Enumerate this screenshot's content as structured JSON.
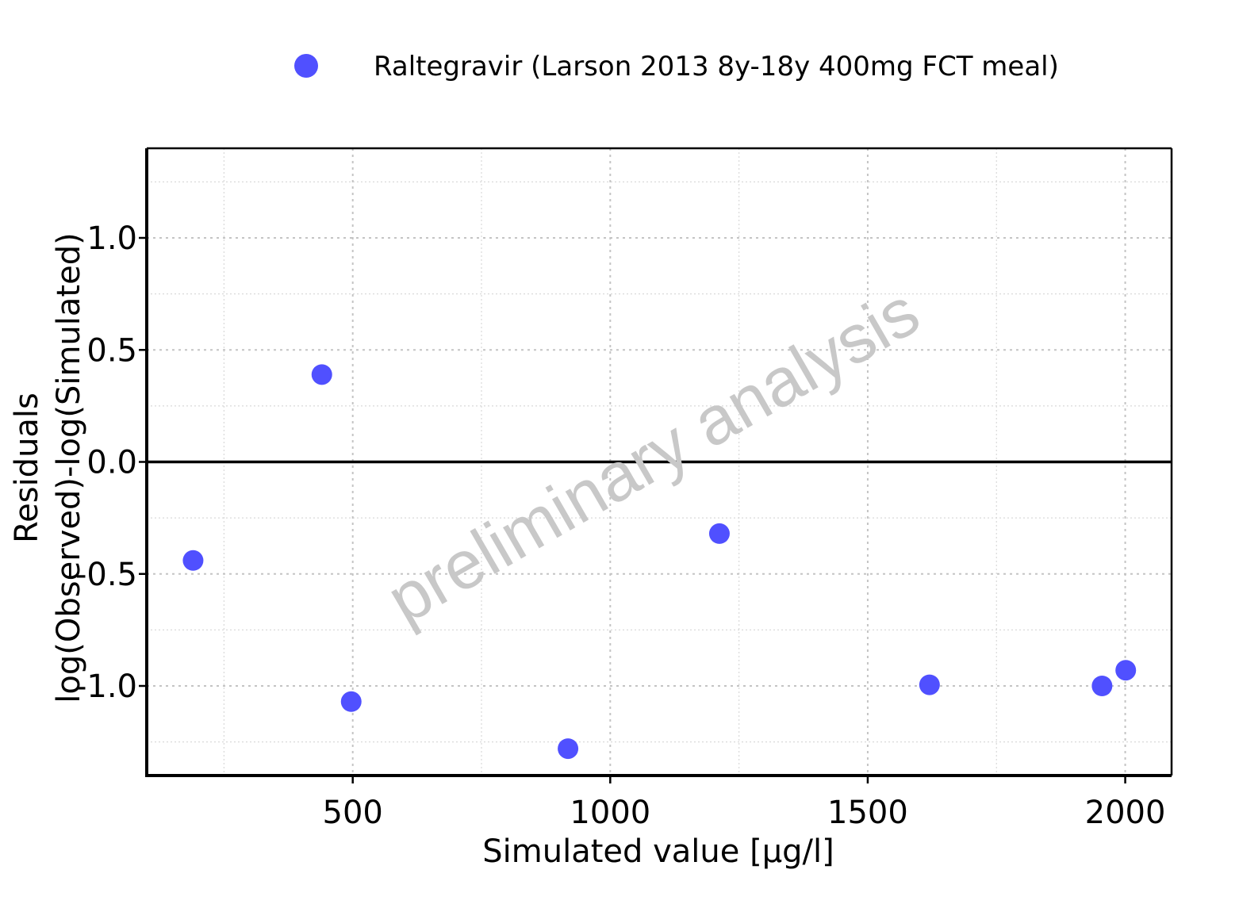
{
  "chart_data": {
    "type": "scatter",
    "series": [
      {
        "name": "Raltegravir (Larson 2013 8y-18y 400mg FCT meal)",
        "color": "#5050FF",
        "x": [
          190,
          440,
          497,
          918,
          1212,
          1620,
          1955,
          2001
        ],
        "y": [
          -0.44,
          0.39,
          -1.07,
          -1.28,
          -0.32,
          -0.995,
          -1.0,
          -0.93
        ]
      }
    ],
    "xlabel": "Simulated value [µg/l]",
    "ylabel_lines": [
      "Residuals",
      "log(Observed)-log(Simulated)"
    ],
    "x_ticks": [
      500,
      1000,
      1500,
      2000
    ],
    "x_tick_labels": [
      "500",
      "1000",
      "1500",
      "2000"
    ],
    "y_ticks": [
      1.0,
      0.5,
      0.0,
      -0.5,
      -1.0
    ],
    "y_tick_labels": [
      "1.0",
      "0.5",
      "0.0",
      "-0.5",
      "-1.0"
    ],
    "xlim": [
      100,
      2090
    ],
    "ylim": [
      -1.4,
      1.4
    ],
    "reference_line_y": 0,
    "grid": true,
    "legend_position": "top",
    "watermark": "preliminary analysis"
  }
}
